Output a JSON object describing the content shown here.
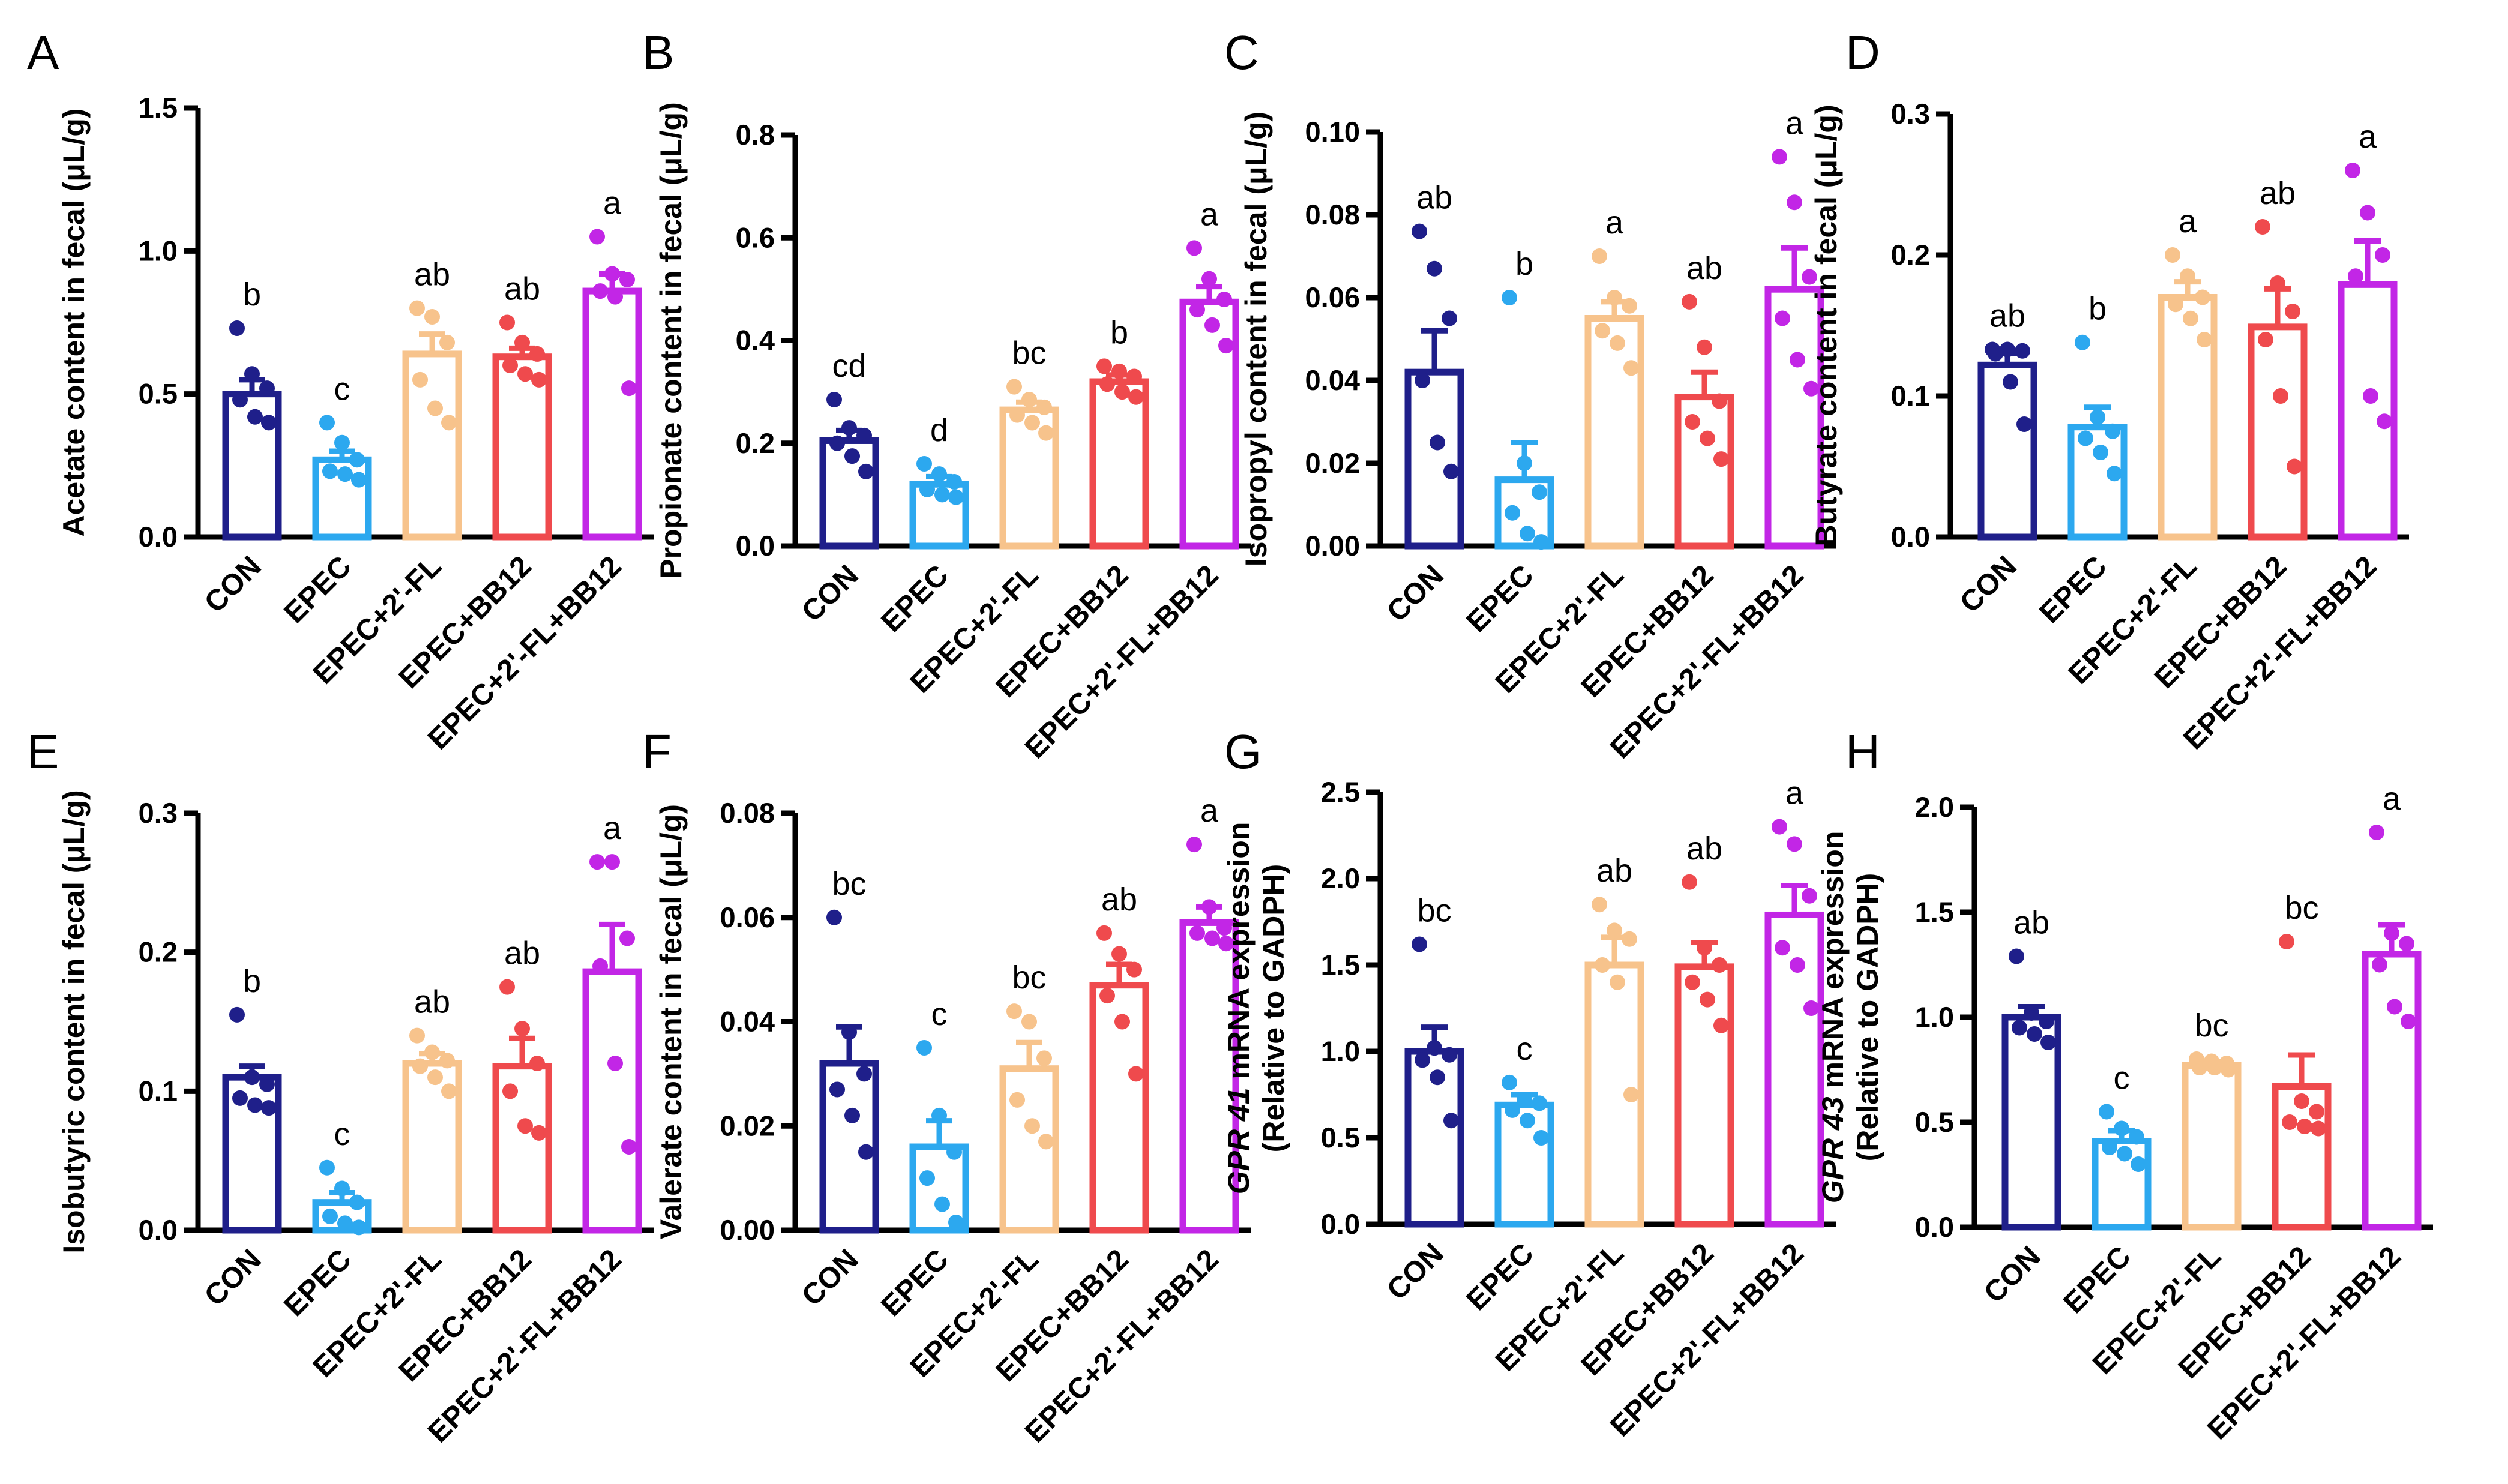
{
  "figure": {
    "categories": [
      "CON",
      "EPEC",
      "EPEC+2'-FL",
      "EPEC+BB12",
      "EPEC+2'-FL+BB12"
    ],
    "group_colors": [
      "#1f1f8a",
      "#2ca8ef",
      "#f7c38c",
      "#ef4a4d",
      "#c226e6"
    ]
  },
  "chart_data": [
    {
      "type": "bar",
      "letter": "A",
      "ylabel": [
        "Acetate content in fecal (μL/g)"
      ],
      "ylim": [
        0,
        1.5
      ],
      "yticks": [
        0,
        0.5,
        1.0,
        1.5
      ],
      "yticklabels": [
        "0.0",
        "0.5",
        "1.0",
        "1.5"
      ],
      "categories": [
        "CON",
        "EPEC",
        "EPEC+2'-FL",
        "EPEC+BB12",
        "EPEC+2'-FL+BB12"
      ],
      "means": [
        0.5,
        0.27,
        0.64,
        0.63,
        0.86
      ],
      "sem": [
        0.05,
        0.03,
        0.07,
        0.03,
        0.06
      ],
      "points": [
        [
          0.73,
          0.57,
          0.52,
          0.48,
          0.42,
          0.4
        ],
        [
          0.4,
          0.33,
          0.27,
          0.23,
          0.22,
          0.2
        ],
        [
          0.8,
          0.77,
          0.68,
          0.55,
          0.45,
          0.4
        ],
        [
          0.75,
          0.68,
          0.64,
          0.6,
          0.57,
          0.55
        ],
        [
          1.05,
          0.92,
          0.9,
          0.86,
          0.84,
          0.52
        ]
      ],
      "significance": [
        "b",
        "c",
        "ab",
        "ab",
        "a"
      ]
    },
    {
      "type": "bar",
      "letter": "B",
      "ylabel": [
        "Propionate content in fecal (μL/g)"
      ],
      "ylim": [
        0,
        0.8
      ],
      "yticks": [
        0,
        0.2,
        0.4,
        0.6,
        0.8
      ],
      "yticklabels": [
        "0.0",
        "0.2",
        "0.4",
        "0.6",
        "0.8"
      ],
      "categories": [
        "CON",
        "EPEC",
        "EPEC+2'-FL",
        "EPEC+BB12",
        "EPEC+2'-FL+BB12"
      ],
      "means": [
        0.205,
        0.12,
        0.265,
        0.32,
        0.475
      ],
      "sem": [
        0.02,
        0.015,
        0.015,
        0.013,
        0.03
      ],
      "points": [
        [
          0.285,
          0.23,
          0.215,
          0.2,
          0.175,
          0.145
        ],
        [
          0.16,
          0.14,
          0.125,
          0.11,
          0.1,
          0.095
        ],
        [
          0.31,
          0.285,
          0.27,
          0.255,
          0.24,
          0.22
        ],
        [
          0.35,
          0.34,
          0.33,
          0.315,
          0.3,
          0.29
        ],
        [
          0.58,
          0.52,
          0.48,
          0.46,
          0.43,
          0.39
        ]
      ],
      "significance": [
        "cd",
        "d",
        "bc",
        "b",
        "a"
      ]
    },
    {
      "type": "bar",
      "letter": "C",
      "ylabel": [
        "Isopropyl content in fecal (μL/g)"
      ],
      "ylim": [
        0,
        0.1
      ],
      "yticks": [
        0,
        0.02,
        0.04,
        0.06,
        0.08,
        0.1
      ],
      "yticklabels": [
        "0.00",
        "0.02",
        "0.04",
        "0.06",
        "0.08",
        "0.10"
      ],
      "categories": [
        "CON",
        "EPEC",
        "EPEC+2'-FL",
        "EPEC+BB12",
        "EPEC+2'-FL+BB12"
      ],
      "means": [
        0.042,
        0.016,
        0.055,
        0.036,
        0.062
      ],
      "sem": [
        0.01,
        0.009,
        0.004,
        0.006,
        0.01
      ],
      "points": [
        [
          0.076,
          0.067,
          0.055,
          0.04,
          0.025,
          0.018
        ],
        [
          0.06,
          0.02,
          0.013,
          0.008,
          0.003,
          0.001
        ],
        [
          0.07,
          0.06,
          0.058,
          0.052,
          0.049,
          0.043
        ],
        [
          0.059,
          0.048,
          0.035,
          0.03,
          0.026,
          0.021
        ],
        [
          0.094,
          0.083,
          0.065,
          0.055,
          0.045,
          0.038
        ]
      ],
      "significance": [
        "ab",
        "b",
        "a",
        "ab",
        "a"
      ]
    },
    {
      "type": "bar",
      "letter": "D",
      "ylabel": [
        "Butyrate content in fecal (μL/g)"
      ],
      "ylim": [
        0,
        0.3
      ],
      "yticks": [
        0,
        0.1,
        0.2,
        0.3
      ],
      "yticklabels": [
        "0.0",
        "0.1",
        "0.2",
        "0.3"
      ],
      "categories": [
        "CON",
        "EPEC",
        "EPEC+2'-FL",
        "EPEC+BB12",
        "EPEC+2'-FL+BB12"
      ],
      "means": [
        0.122,
        0.078,
        0.17,
        0.149,
        0.179
      ],
      "sem": [
        0.008,
        0.014,
        0.011,
        0.027,
        0.031
      ],
      "points": [
        [
          0.133,
          0.133,
          0.132,
          0.13,
          0.11,
          0.08
        ],
        [
          0.138,
          0.085,
          0.075,
          0.07,
          0.06,
          0.045
        ],
        [
          0.2,
          0.185,
          0.17,
          0.165,
          0.155,
          0.14
        ],
        [
          0.22,
          0.18,
          0.16,
          0.14,
          0.1,
          0.05
        ],
        [
          0.26,
          0.23,
          0.2,
          0.185,
          0.1,
          0.082
        ]
      ],
      "significance": [
        "ab",
        "b",
        "a",
        "ab",
        "a"
      ]
    },
    {
      "type": "bar",
      "letter": "E",
      "ylabel": [
        "Isobutyric content in fecal (μL/g)"
      ],
      "ylim": [
        0,
        0.3
      ],
      "yticks": [
        0,
        0.1,
        0.2,
        0.3
      ],
      "yticklabels": [
        "0.0",
        "0.1",
        "0.2",
        "0.3"
      ],
      "categories": [
        "CON",
        "EPEC",
        "EPEC+2'-FL",
        "EPEC+BB12",
        "EPEC+2'-FL+BB12"
      ],
      "means": [
        0.11,
        0.02,
        0.12,
        0.118,
        0.186
      ],
      "sem": [
        0.008,
        0.007,
        0.007,
        0.02,
        0.034
      ],
      "points": [
        [
          0.155,
          0.11,
          0.105,
          0.095,
          0.09,
          0.088
        ],
        [
          0.045,
          0.03,
          0.02,
          0.01,
          0.005,
          0.002
        ],
        [
          0.14,
          0.128,
          0.122,
          0.118,
          0.11,
          0.1
        ],
        [
          0.175,
          0.145,
          0.12,
          0.1,
          0.075,
          0.07
        ],
        [
          0.265,
          0.265,
          0.21,
          0.19,
          0.12,
          0.06
        ]
      ],
      "significance": [
        "b",
        "c",
        "ab",
        "ab",
        "a"
      ]
    },
    {
      "type": "bar",
      "letter": "F",
      "ylabel": [
        "Valerate content in fecal (μL/g)"
      ],
      "ylim": [
        0,
        0.08
      ],
      "yticks": [
        0,
        0.02,
        0.04,
        0.06,
        0.08
      ],
      "yticklabels": [
        "0.00",
        "0.02",
        "0.04",
        "0.06",
        "0.08"
      ],
      "categories": [
        "CON",
        "EPEC",
        "EPEC+2'-FL",
        "EPEC+BB12",
        "EPEC+2'-FL+BB12"
      ],
      "means": [
        0.032,
        0.016,
        0.031,
        0.047,
        0.059
      ],
      "sem": [
        0.007,
        0.005,
        0.005,
        0.004,
        0.003
      ],
      "points": [
        [
          0.06,
          0.038,
          0.03,
          0.027,
          0.022,
          0.015
        ],
        [
          0.035,
          0.022,
          0.015,
          0.01,
          0.005,
          0.0015
        ],
        [
          0.042,
          0.04,
          0.033,
          0.025,
          0.02,
          0.017
        ],
        [
          0.057,
          0.053,
          0.05,
          0.045,
          0.04,
          0.03
        ],
        [
          0.074,
          0.062,
          0.058,
          0.057,
          0.056,
          0.055
        ]
      ],
      "significance": [
        "bc",
        "c",
        "bc",
        "ab",
        "a"
      ]
    },
    {
      "type": "bar",
      "letter": "G",
      "ylabel": [
        "GPR 41 mRNA expression",
        "(Relative to GADPH)"
      ],
      "ylim": [
        0,
        2.5
      ],
      "yticks": [
        0,
        0.5,
        1.0,
        1.5,
        2.0,
        2.5
      ],
      "yticklabels": [
        "0.0",
        "0.5",
        "1.0",
        "1.5",
        "2.0",
        "2.5"
      ],
      "categories": [
        "CON",
        "EPEC",
        "EPEC+2'-FL",
        "EPEC+BB12",
        "EPEC+2'-FL+BB12"
      ],
      "means": [
        1.0,
        0.69,
        1.5,
        1.49,
        1.79
      ],
      "sem": [
        0.14,
        0.06,
        0.16,
        0.14,
        0.17
      ],
      "points": [
        [
          1.62,
          1.02,
          0.98,
          0.95,
          0.85,
          0.6
        ],
        [
          0.82,
          0.72,
          0.7,
          0.66,
          0.6,
          0.5
        ],
        [
          1.85,
          1.7,
          1.65,
          1.5,
          1.4,
          0.75
        ],
        [
          1.98,
          1.6,
          1.5,
          1.4,
          1.3,
          1.15
        ],
        [
          2.3,
          2.2,
          1.9,
          1.6,
          1.5,
          1.25
        ]
      ],
      "significance": [
        "bc",
        "c",
        "ab",
        "ab",
        "a"
      ]
    },
    {
      "type": "bar",
      "letter": "H",
      "ylabel": [
        "GPR 43 mRNA expression",
        "(Relative to GADPH)"
      ],
      "ylim": [
        0,
        2.0
      ],
      "yticks": [
        0,
        0.5,
        1.0,
        1.5,
        2.0
      ],
      "yticklabels": [
        "0.0",
        "0.5",
        "1.0",
        "1.5",
        "2.0"
      ],
      "categories": [
        "CON",
        "EPEC",
        "EPEC+2'-FL",
        "EPEC+BB12",
        "EPEC+2'-FL+BB12"
      ],
      "means": [
        1.0,
        0.41,
        0.77,
        0.67,
        1.3
      ],
      "sem": [
        0.05,
        0.05,
        0.02,
        0.15,
        0.14
      ],
      "points": [
        [
          1.29,
          1.02,
          0.98,
          0.95,
          0.92,
          0.88
        ],
        [
          0.55,
          0.47,
          0.43,
          0.38,
          0.35,
          0.3
        ],
        [
          0.8,
          0.79,
          0.78,
          0.76,
          0.76,
          0.75
        ],
        [
          1.36,
          0.6,
          0.55,
          0.5,
          0.48,
          0.47
        ],
        [
          1.88,
          1.4,
          1.35,
          1.25,
          1.05,
          0.98
        ]
      ],
      "significance": [
        "ab",
        "c",
        "bc",
        "bc",
        "a"
      ]
    }
  ]
}
